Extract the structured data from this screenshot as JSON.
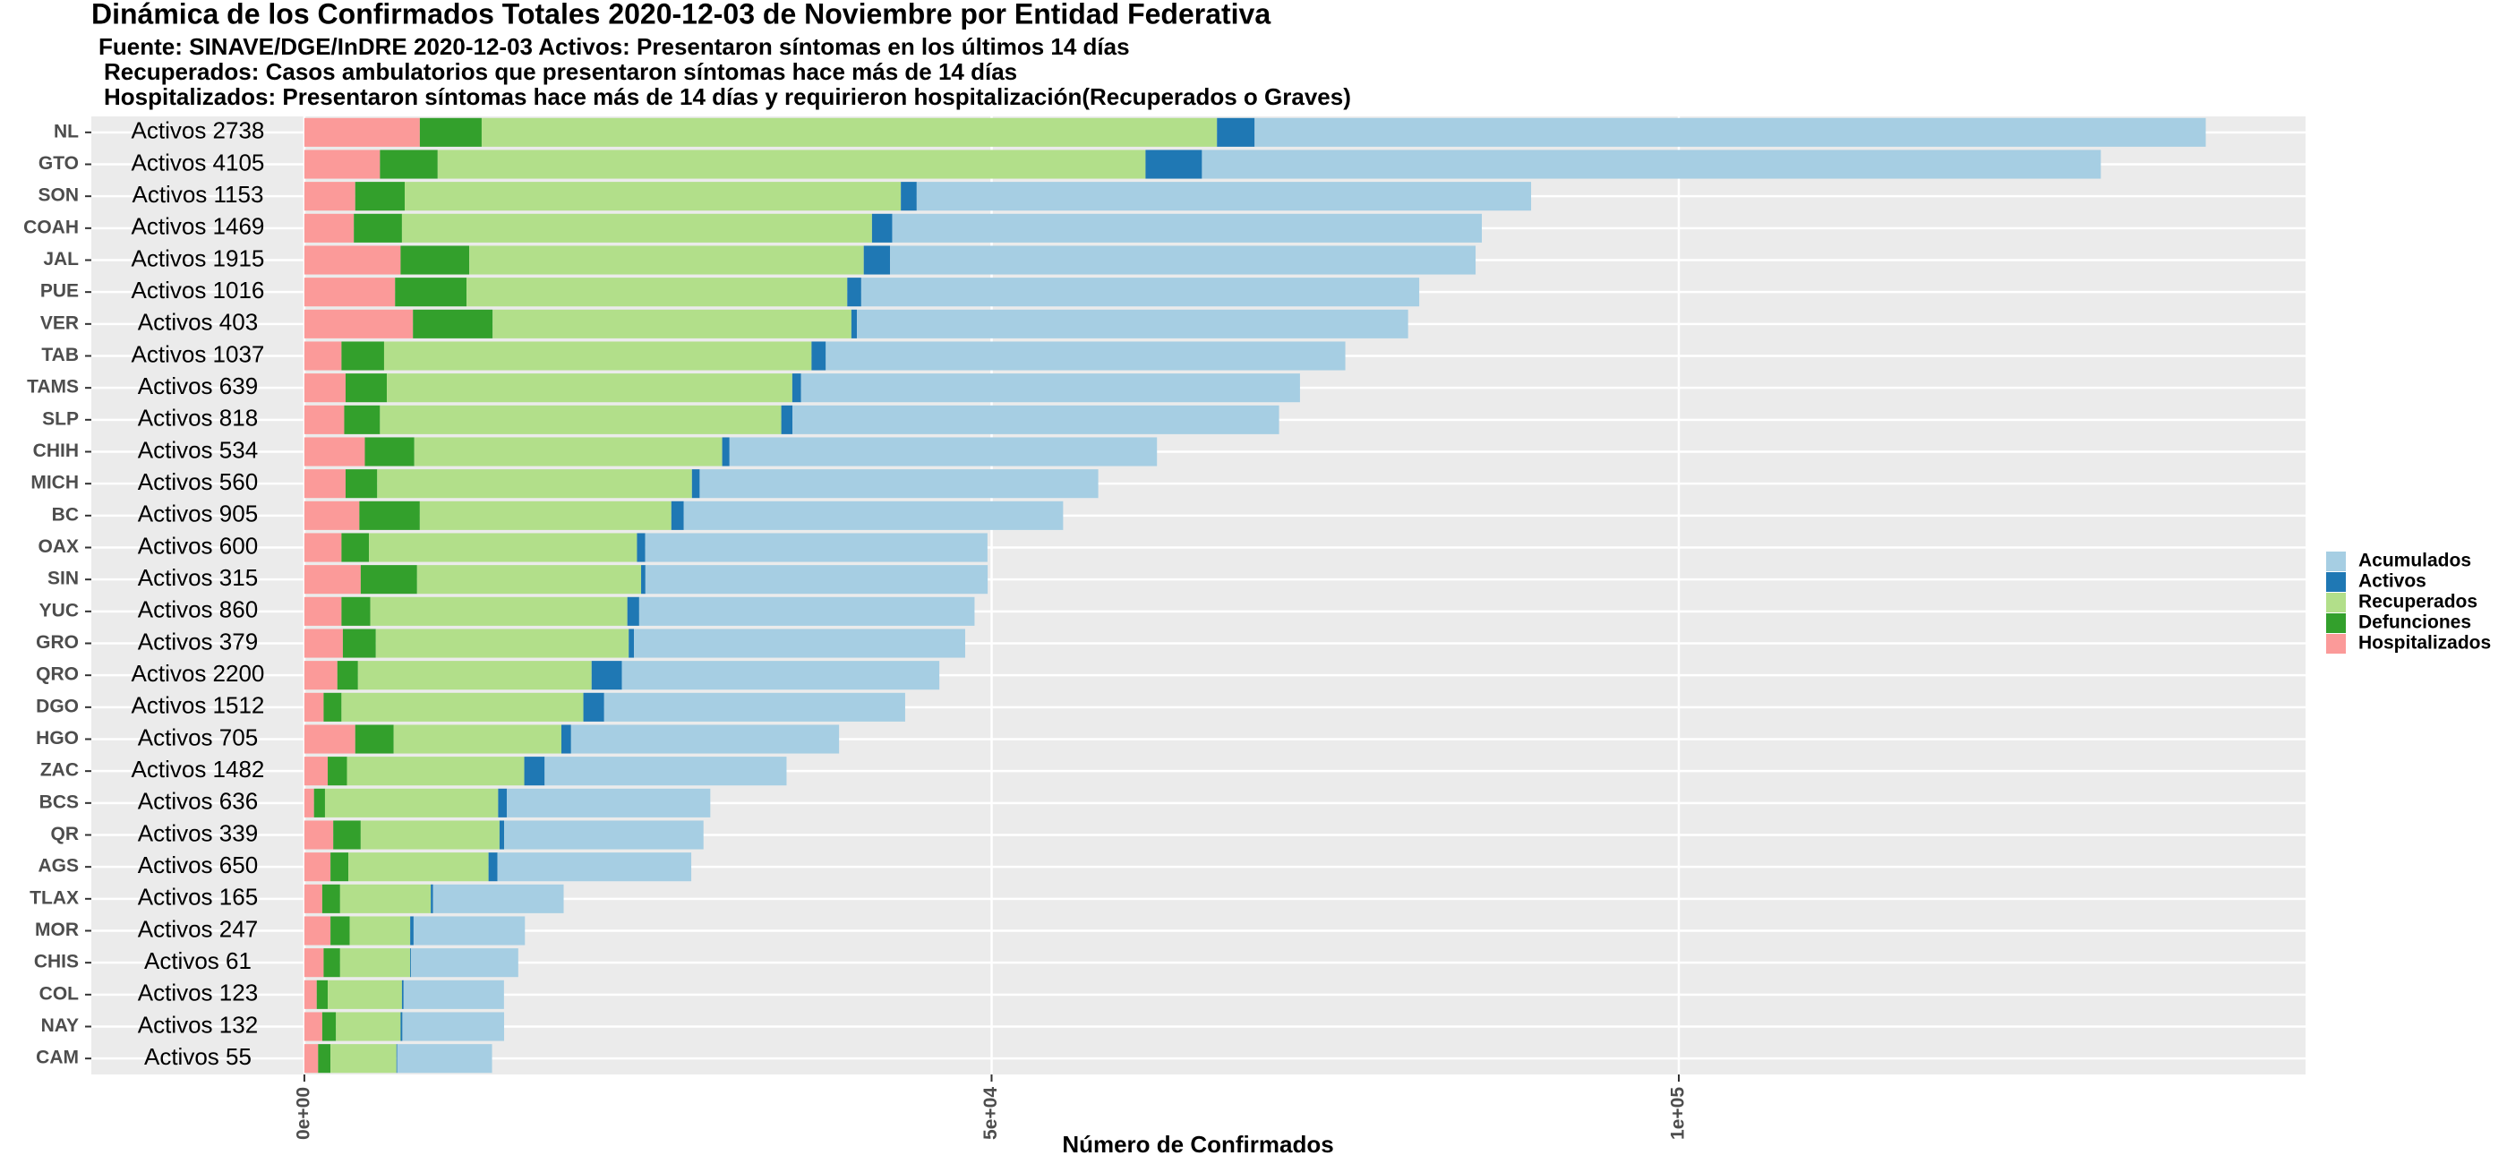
{
  "chart_data": {
    "type": "stacked-barh",
    "title": "Dinámica de los Confirmados Totales 2020-12-03  de Noviembre por Entidad Federativa",
    "subtitle": [
      "Fuente:  SINAVE/DGE/InDRE 2020-12-03 Activos: Presentaron síntomas en los últimos 14 días",
      "Recuperados: Casos ambulatorios que presentaron síntomas hace más de 14 días",
      "Hospitalizados: Presentaron síntomas hace más de 14 días y requirieron hospitalización(Recuperados o Graves)"
    ],
    "xlabel": "Número de Confirmados",
    "categories": [
      "NL",
      "GTO",
      "SON",
      "COAH",
      "JAL",
      "PUE",
      "VER",
      "TAB",
      "TAMS",
      "SLP",
      "CHIH",
      "MICH",
      "BC",
      "OAX",
      "SIN",
      "YUC",
      "GRO",
      "QRO",
      "DGO",
      "HGO",
      "ZAC",
      "BCS",
      "QR",
      "AGS",
      "TLAX",
      "MOR",
      "CHIS",
      "COL",
      "NAY",
      "CAM"
    ],
    "series": [
      {
        "name": "Hospitalizados",
        "color": "#fb9a99",
        "values": [
          8400,
          5500,
          3700,
          3600,
          7000,
          6600,
          7900,
          2700,
          3000,
          2900,
          4400,
          3000,
          4000,
          2700,
          4100,
          2700,
          2800,
          2400,
          1400,
          3700,
          1700,
          700,
          2100,
          1900,
          1300,
          1900,
          1400,
          900,
          1300,
          1000
        ]
      },
      {
        "name": "Defunciones",
        "color": "#33a02c",
        "values": [
          4500,
          4200,
          3600,
          3500,
          5000,
          5200,
          5800,
          3100,
          3000,
          2600,
          3600,
          2300,
          4400,
          2000,
          4100,
          2100,
          2400,
          1500,
          1300,
          2800,
          1400,
          800,
          2000,
          1300,
          1300,
          1400,
          1200,
          800,
          1000,
          900
        ]
      },
      {
        "name": "Recuperados",
        "color": "#b2df8a",
        "values": [
          53500,
          51500,
          36100,
          34200,
          28700,
          27700,
          26100,
          31100,
          29500,
          29200,
          22400,
          22900,
          18300,
          19500,
          16300,
          18700,
          18400,
          17000,
          17600,
          12200,
          12900,
          12600,
          10100,
          10200,
          6600,
          4400,
          5100,
          5400,
          4700,
          4800
        ]
      },
      {
        "name": "Activos",
        "color": "#1f78b4",
        "values": [
          2738,
          4105,
          1153,
          1469,
          1915,
          1016,
          403,
          1037,
          639,
          818,
          534,
          560,
          905,
          600,
          315,
          860,
          379,
          2200,
          1512,
          705,
          1482,
          636,
          339,
          650,
          165,
          247,
          61,
          123,
          132,
          55
        ],
        "value_labels": [
          "Activos 2738",
          "Activos 4105",
          "Activos 1153",
          "Activos 1469",
          "Activos 1915",
          "Activos 1016",
          "Activos 403",
          "Activos 1037",
          "Activos 639",
          "Activos 818",
          "Activos 534",
          "Activos 560",
          "Activos 905",
          "Activos 600",
          "Activos 315",
          "Activos 860",
          "Activos 379",
          "Activos 2200",
          "Activos 1512",
          "Activos 705",
          "Activos 1482",
          "Activos 636",
          "Activos 339",
          "Activos 650",
          "Activos 165",
          "Activos 247",
          "Activos 61",
          "Activos 123",
          "Activos 132",
          "Activos 55"
        ]
      },
      {
        "name": "Acumulados",
        "color": "#a6cee3",
        "values": [
          69200,
          65400,
          44700,
          42900,
          42600,
          40600,
          40100,
          37800,
          36300,
          35400,
          31100,
          29000,
          27600,
          24900,
          24900,
          24400,
          24100,
          23100,
          21900,
          19500,
          17600,
          14800,
          14500,
          14100,
          9500,
          8100,
          7800,
          7300,
          7400,
          6900
        ]
      }
    ],
    "xlim": [
      -15500,
      145600
    ],
    "xticks": [
      {
        "value": 0,
        "label": "0e+00"
      },
      {
        "value": 50000,
        "label": "5e+04"
      },
      {
        "value": 100000,
        "label": "1e+05"
      }
    ],
    "grid": true
  }
}
